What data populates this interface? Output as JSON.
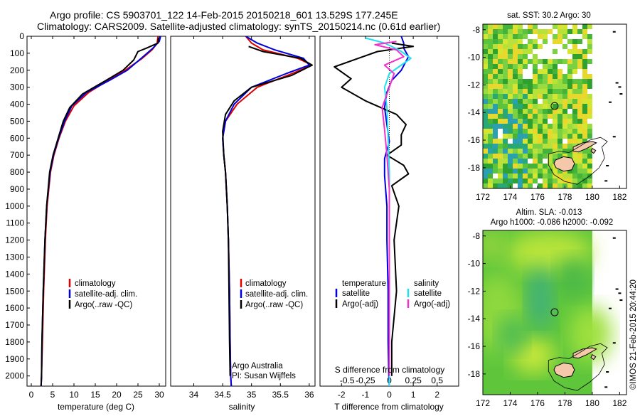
{
  "header": {
    "title_line1": "Argo profile: CS 5903701_122 14-Feb-2015 20150218_601 13.529S 177.245E",
    "title_line2": "Climatology: CARS2009. Satellite-adjusted climatology: synTS_20150214.nc (0.61d earlier)"
  },
  "colors": {
    "climatology": "#e00000",
    "satellite": "#0000dd",
    "argo": "#000000",
    "sat_salinity": "#22e0ee",
    "argo_salinity": "#ee33cc",
    "land": "#f4c8a8"
  },
  "depth_ticks": [
    0,
    100,
    200,
    300,
    400,
    500,
    600,
    700,
    800,
    900,
    1000,
    1100,
    1200,
    1300,
    1400,
    1500,
    1600,
    1700,
    1800,
    1900,
    2000
  ],
  "chart_data": [
    {
      "type": "line",
      "xlabel": "temperature (deg C)",
      "xlim": [
        -1,
        31.5
      ],
      "ylim": [
        2060,
        0
      ],
      "x_ticks": [
        0,
        5,
        10,
        15,
        20,
        25,
        30
      ],
      "legend": [
        "climatology",
        "satellite-adj. clim.",
        "Argo(..raw -QC)"
      ],
      "series": [
        {
          "name": "climatology",
          "color_key": "climatology",
          "x": [
            29.7,
            29.5,
            28.3,
            26.0,
            22.0,
            18.0,
            13.5,
            10.0,
            8.0,
            6.5,
            5.3,
            4.5,
            3.7,
            3.3,
            2.9,
            2.6,
            2.4,
            2.3
          ],
          "y": [
            0,
            40,
            80,
            130,
            200,
            260,
            330,
            410,
            500,
            600,
            700,
            800,
            1000,
            1200,
            1500,
            1800,
            2000,
            2060
          ]
        },
        {
          "name": "satellite-adj. clim.",
          "color_key": "satellite",
          "x": [
            30.3,
            30.0,
            28.5,
            26.2,
            22.5,
            18.3,
            13.0,
            9.5,
            7.8,
            6.4,
            5.2,
            4.4,
            3.6,
            3.2,
            2.8,
            2.5,
            2.4,
            2.3
          ],
          "y": [
            0,
            30,
            70,
            120,
            200,
            260,
            330,
            410,
            500,
            600,
            700,
            800,
            1000,
            1200,
            1500,
            1800,
            2000,
            2060
          ]
        },
        {
          "name": "Argo(..raw -QC)",
          "color_key": "argo",
          "x": [
            29.8,
            29.7,
            27.0,
            25.0,
            24.0,
            21.5,
            17.5,
            12.0,
            9.0,
            7.5,
            6.3,
            5.1,
            4.3,
            3.6,
            3.2,
            2.8,
            2.5,
            2.4,
            2.3
          ],
          "y": [
            10,
            40,
            70,
            90,
            140,
            200,
            260,
            340,
            420,
            500,
            600,
            700,
            800,
            1000,
            1200,
            1500,
            1800,
            2000,
            2060
          ]
        }
      ]
    },
    {
      "type": "line",
      "xlabel": "salinity",
      "xlim": [
        33.6,
        36.1
      ],
      "ylim": [
        2060,
        0
      ],
      "x_ticks": [
        34,
        34.5,
        35,
        35.5,
        36
      ],
      "legend": [
        "climatology",
        "satellite-adj. clim.",
        "Argo(..raw -QC)"
      ],
      "annotation": [
        "Argo Australia",
        "PI: Susan Wijffels"
      ],
      "series": [
        {
          "name": "climatology",
          "color_key": "climatology",
          "x": [
            34.9,
            35.0,
            35.2,
            35.8,
            36.05,
            35.7,
            35.1,
            34.75,
            34.55,
            34.5,
            34.52,
            34.55,
            34.58,
            34.6,
            34.62,
            34.63,
            34.64,
            34.65
          ],
          "y": [
            0,
            40,
            80,
            130,
            170,
            220,
            300,
            400,
            500,
            600,
            700,
            800,
            1000,
            1200,
            1500,
            1800,
            2000,
            2060
          ]
        },
        {
          "name": "satellite-adj. clim.",
          "color_key": "satellite",
          "x": [
            34.9,
            35.1,
            35.4,
            35.9,
            36.0,
            35.6,
            35.0,
            34.7,
            34.55,
            34.5,
            34.52,
            34.55,
            34.58,
            34.6,
            34.62,
            34.63,
            34.64,
            34.65
          ],
          "y": [
            0,
            40,
            80,
            130,
            170,
            220,
            300,
            400,
            500,
            600,
            700,
            800,
            1000,
            1200,
            1500,
            1800,
            2000,
            2060
          ]
        },
        {
          "name": "Argo(..raw -QC)",
          "color_key": "argo",
          "x": [
            34.95,
            35.2,
            35.85,
            36.05,
            35.7,
            35.0,
            34.7,
            34.55,
            34.5,
            34.52,
            34.55,
            34.58,
            34.6,
            34.61,
            34.62,
            34.63
          ],
          "y": [
            60,
            90,
            130,
            170,
            230,
            300,
            380,
            460,
            560,
            700,
            800,
            1000,
            1200,
            1500,
            1800,
            2000
          ]
        }
      ]
    },
    {
      "type": "line",
      "xlabel": "T difference from climatology",
      "top_label": "S difference from climatology",
      "xlim": [
        -2.9,
        2.9
      ],
      "ylim": [
        2060,
        0
      ],
      "x_ticks": [
        -2,
        -1,
        0,
        1,
        2
      ],
      "x_ticks_salinity": [
        "-0.5",
        "-0.25",
        "0",
        "0.25",
        "0.5"
      ],
      "legend_temperature": {
        "title": "temperature",
        "items": [
          "satellite",
          "Argo(-adj)"
        ]
      },
      "legend_salinity": {
        "title": "salinity",
        "items": [
          "satellite",
          "Argo(-adj)"
        ]
      },
      "series": [
        {
          "name": "temperature satellite",
          "color_key": "satellite",
          "x": [
            0.5,
            0.6,
            0.6,
            0.8,
            0.5,
            0.1,
            -0.1,
            -0.2,
            -0.1,
            0.0,
            -0.2,
            -0.2,
            -0.1,
            -0.1,
            -0.05,
            -0.05,
            -0.02,
            0.0
          ],
          "y": [
            0,
            40,
            70,
            120,
            200,
            260,
            330,
            420,
            520,
            620,
            720,
            820,
            1000,
            1200,
            1500,
            1800,
            2000,
            2060
          ]
        },
        {
          "name": "temperature Argo(-adj)",
          "color_key": "argo",
          "x": [
            0.1,
            1.0,
            -0.5,
            -2.3,
            -1.6,
            -2.0,
            -1.0,
            0.3,
            0.7,
            0.5,
            0.5,
            -0.1,
            0.6,
            0.8,
            0.1,
            0.4,
            0.2,
            0.3,
            0.1,
            0.1
          ],
          "y": [
            40,
            60,
            90,
            180,
            250,
            300,
            380,
            460,
            520,
            580,
            640,
            700,
            760,
            810,
            880,
            1000,
            1200,
            1500,
            1800,
            2000
          ]
        },
        {
          "name": "salinity satellite",
          "color_key": "sat_salinity",
          "x": [
            -1.0,
            -0.2,
            0.4,
            0.9,
            0.0,
            -0.2,
            -0.1,
            -0.05,
            0.0,
            0.0,
            0.0,
            0.0,
            0.0
          ],
          "y": [
            10,
            40,
            80,
            130,
            220,
            300,
            420,
            600,
            800,
            1000,
            1400,
            1800,
            2060
          ]
        },
        {
          "name": "salinity Argo(-adj)",
          "color_key": "argo_salinity",
          "x": [
            0.3,
            -0.6,
            0.3,
            0.6,
            -0.2,
            0.2,
            0.0,
            -0.3,
            -0.2,
            -0.1,
            0.0,
            0.0,
            0.0,
            0.0
          ],
          "y": [
            30,
            50,
            80,
            120,
            170,
            220,
            300,
            420,
            550,
            700,
            900,
            1200,
            1600,
            2000
          ]
        }
      ]
    },
    {
      "type": "heatmap",
      "title": "sat. SST: 30.2 Argo: 30",
      "xlim": [
        172,
        182.5
      ],
      "ylim": [
        -19.5,
        -7.6
      ],
      "x_ticks": [
        172,
        174,
        176,
        178,
        180,
        182
      ],
      "y_ticks": [
        -8,
        -10,
        -12,
        -14,
        -16,
        -18
      ],
      "marker": {
        "lon": 177.245,
        "lat": -13.529
      },
      "data_extent_lon": [
        172,
        180
      ]
    },
    {
      "type": "heatmap",
      "title_line1": "Altim. SLA: -0.013",
      "title_line2": "Argo h1000: -0.086 h2000: -0.092",
      "xlim": [
        172,
        182.5
      ],
      "ylim": [
        -19.5,
        -7.6
      ],
      "x_ticks": [
        172,
        174,
        176,
        178,
        180,
        182
      ],
      "y_ticks": [
        -8,
        -10,
        -12,
        -14,
        -16,
        -18
      ],
      "marker": {
        "lon": 177.245,
        "lat": -13.529
      },
      "data_extent_lon": [
        172,
        180
      ]
    }
  ],
  "credit": "©IMOS 21-Feb-2015 20:44:20"
}
